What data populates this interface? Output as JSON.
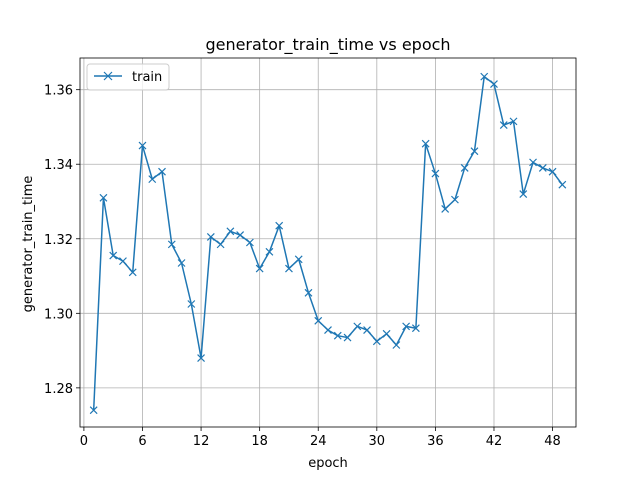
{
  "chart_data": {
    "type": "line",
    "title": "generator_train_time vs epoch",
    "xlabel": "epoch",
    "ylabel": "generator_train_time",
    "xlim": [
      -0.4,
      50.4
    ],
    "ylim": [
      1.2695,
      1.3685
    ],
    "x_ticks": [
      0,
      6,
      12,
      18,
      24,
      30,
      36,
      42,
      48
    ],
    "y_ticks": [
      1.28,
      1.3,
      1.32,
      1.34,
      1.36
    ],
    "y_tick_labels": [
      "1.28",
      "1.30",
      "1.32",
      "1.34",
      "1.36"
    ],
    "grid": true,
    "legend": {
      "placement": "top-left"
    },
    "series": [
      {
        "name": "train",
        "color": "#1f77b4",
        "marker": "x",
        "x": [
          1,
          2,
          3,
          4,
          5,
          6,
          7,
          8,
          9,
          10,
          11,
          12,
          13,
          14,
          15,
          16,
          17,
          18,
          19,
          20,
          21,
          22,
          23,
          24,
          25,
          26,
          27,
          28,
          29,
          30,
          31,
          32,
          33,
          34,
          35,
          36,
          37,
          38,
          39,
          40,
          41,
          42,
          43,
          44,
          45,
          46,
          47,
          48,
          49
        ],
        "values": [
          1.274,
          1.331,
          1.3155,
          1.314,
          1.311,
          1.345,
          1.336,
          1.338,
          1.3185,
          1.3135,
          1.3025,
          1.288,
          1.3205,
          1.3185,
          1.322,
          1.321,
          1.319,
          1.312,
          1.3165,
          1.3235,
          1.312,
          1.3145,
          1.3055,
          1.298,
          1.2955,
          1.294,
          1.2935,
          1.2965,
          1.2955,
          1.2925,
          1.2945,
          1.2915,
          1.2965,
          1.296,
          1.3455,
          1.3375,
          1.328,
          1.3305,
          1.339,
          1.3435,
          1.3635,
          1.3615,
          1.3505,
          1.3515,
          1.332,
          1.3405,
          1.339,
          1.338,
          1.3345
        ]
      }
    ]
  }
}
